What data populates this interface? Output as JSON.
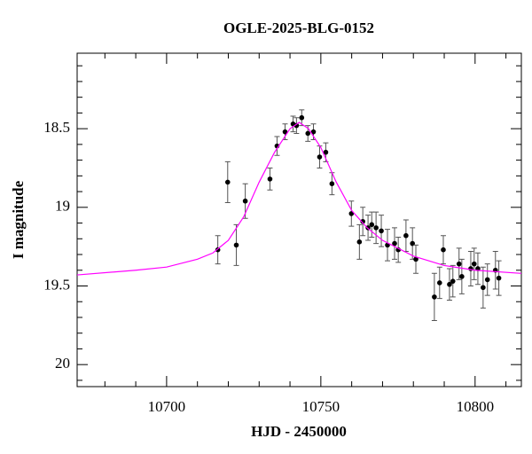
{
  "chart_data": {
    "type": "scatter",
    "title": "OGLE-2025-BLG-0152",
    "x_label": "HJD - 2450000",
    "y_label": "I magnitude",
    "xlim": [
      10671,
      10815
    ],
    "ylim": [
      20.14,
      18.02
    ],
    "xticks": [
      10700,
      10750,
      10800
    ],
    "yticks": [
      18.5,
      19,
      19.5,
      20
    ],
    "xminorticks": [
      10680,
      10690,
      10710,
      10720,
      10730,
      10740,
      10760,
      10770,
      10780,
      10790,
      10810
    ],
    "yminorticks": [
      18.1,
      18.2,
      18.3,
      18.4,
      18.6,
      18.7,
      18.8,
      18.9,
      19.1,
      19.2,
      19.3,
      19.4,
      19.6,
      19.7,
      19.8,
      19.9,
      20.1
    ],
    "series": [
      {
        "color": "#000000",
        "x": [
          10716.6,
          10719.8,
          10722.6,
          10725.5,
          10733.5,
          10735.8,
          10738.4,
          10741.0,
          10742.1,
          10743.8,
          10745.8,
          10747.6,
          10749.6,
          10751.6,
          10753.6,
          10759.9,
          10762.5,
          10763.6,
          10765.3,
          10766.5,
          10767.9,
          10769.6,
          10771.6,
          10773.9,
          10775.1,
          10777.6,
          10779.7,
          10780.8,
          10786.8,
          10788.5,
          10789.7,
          10791.7,
          10792.8,
          10794.8,
          10795.7,
          10798.6,
          10799.7,
          10800.9,
          10802.6,
          10804.0,
          10806.6,
          10807.7
        ],
        "values": [
          19.27,
          18.84,
          19.24,
          18.96,
          18.82,
          18.61,
          18.52,
          18.47,
          18.48,
          18.43,
          18.53,
          18.52,
          18.68,
          18.65,
          18.85,
          19.04,
          19.22,
          19.09,
          19.13,
          19.11,
          19.13,
          19.15,
          19.24,
          19.23,
          19.27,
          19.18,
          19.23,
          19.33,
          19.57,
          19.48,
          19.27,
          19.49,
          19.47,
          19.36,
          19.44,
          19.39,
          19.36,
          19.39,
          19.51,
          19.46,
          19.4,
          19.45
        ],
        "errors": [
          0.09,
          0.13,
          0.13,
          0.11,
          0.07,
          0.06,
          0.05,
          0.05,
          0.05,
          0.05,
          0.05,
          0.05,
          0.07,
          0.06,
          0.07,
          0.08,
          0.11,
          0.09,
          0.08,
          0.08,
          0.1,
          0.1,
          0.1,
          0.1,
          0.08,
          0.1,
          0.1,
          0.09,
          0.15,
          0.1,
          0.09,
          0.1,
          0.1,
          0.1,
          0.11,
          0.11,
          0.1,
          0.1,
          0.13,
          0.1,
          0.12,
          0.11
        ]
      },
      {
        "type": "line",
        "color": "#ff00ff",
        "x": [
          10671,
          10690,
          10700,
          10710,
          10715,
          10720,
          10725,
          10730,
          10735,
          10740,
          10743,
          10746,
          10750,
          10755,
          10760,
          10765,
          10770,
          10780,
          10790,
          10800,
          10815
        ],
        "values": [
          19.43,
          19.4,
          19.38,
          19.33,
          19.29,
          19.21,
          19.06,
          18.84,
          18.65,
          18.5,
          18.46,
          18.5,
          18.62,
          18.84,
          19.02,
          19.13,
          19.21,
          19.31,
          19.37,
          19.4,
          19.42
        ]
      }
    ]
  }
}
